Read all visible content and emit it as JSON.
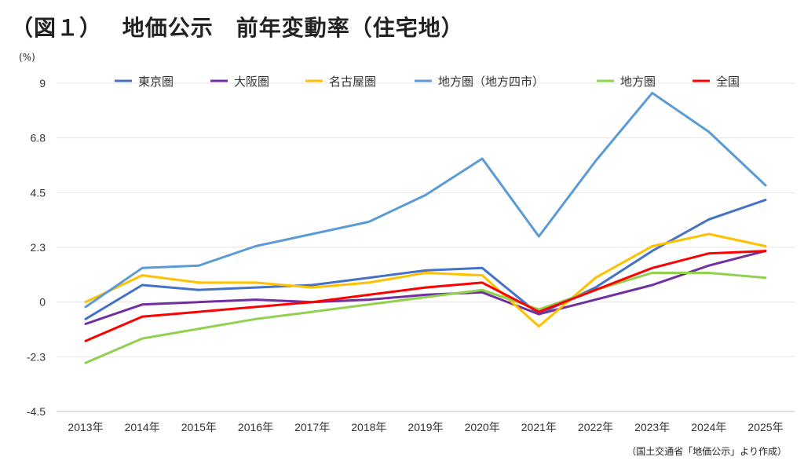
{
  "header": {
    "title": "（図１）　 地価公示　前年変動率（住宅地）",
    "unit": "(%)",
    "source": "（国土交通省「地価公示」より作成）"
  },
  "chart_data": {
    "type": "line",
    "title": "（図１）　 地価公示　前年変動率（住宅地）",
    "ylabel": "(%)",
    "xlabel": "",
    "ylim": [
      -4.5,
      9
    ],
    "yticks": [
      "9",
      "6.8",
      "4.5",
      "2.3",
      "0",
      "-2.3",
      "-4.5"
    ],
    "ytick_values": [
      9,
      6.75,
      4.5,
      2.25,
      0,
      -2.25,
      -4.5
    ],
    "grid": "horizontal",
    "legend": "top",
    "categories": [
      "2013年",
      "2014年",
      "2015年",
      "2016年",
      "2017年",
      "2018年",
      "2019年",
      "2020年",
      "2021年",
      "2022年",
      "2023年",
      "2024年",
      "2025年"
    ],
    "series": [
      {
        "name": "東京圏",
        "color": "#4472C4",
        "values": [
          -0.7,
          0.7,
          0.5,
          0.6,
          0.7,
          1.0,
          1.3,
          1.4,
          -0.5,
          0.6,
          2.1,
          3.4,
          4.2
        ]
      },
      {
        "name": "大阪圏",
        "color": "#7030A0",
        "values": [
          -0.9,
          -0.1,
          0.0,
          0.1,
          0.0,
          0.1,
          0.3,
          0.4,
          -0.5,
          0.1,
          0.7,
          1.5,
          2.1
        ]
      },
      {
        "name": "名古屋圏",
        "color": "#FFC000",
        "values": [
          0.0,
          1.1,
          0.8,
          0.8,
          0.6,
          0.8,
          1.2,
          1.1,
          -1.0,
          1.0,
          2.3,
          2.8,
          2.3
        ]
      },
      {
        "name": "地方圏（地方四市）",
        "color": "#5B9BD5",
        "values": [
          -0.2,
          1.4,
          1.5,
          2.3,
          2.8,
          3.3,
          4.4,
          5.9,
          2.7,
          5.8,
          8.6,
          7.0,
          4.8
        ]
      },
      {
        "name": "地方圏",
        "color": "#92D050",
        "values": [
          -2.5,
          -1.5,
          -1.1,
          -0.7,
          -0.4,
          -0.1,
          0.2,
          0.5,
          -0.3,
          0.5,
          1.2,
          1.2,
          1.0
        ]
      },
      {
        "name": "全国",
        "color": "#FF0000",
        "values": [
          -1.6,
          -0.6,
          -0.4,
          -0.2,
          0.0,
          0.3,
          0.6,
          0.8,
          -0.4,
          0.5,
          1.4,
          2.0,
          2.1
        ]
      }
    ]
  }
}
